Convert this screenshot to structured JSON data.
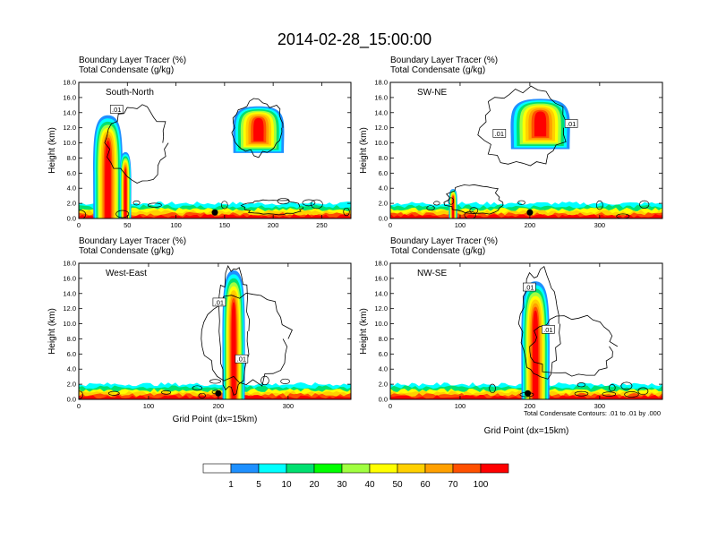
{
  "figure_title": "2014-02-28_15:00:00",
  "contour_note": "Total Condensate Contours: .01 to .01 by .000",
  "colorbar": {
    "levels": [
      "1",
      "5",
      "10",
      "20",
      "30",
      "40",
      "50",
      "60",
      "70",
      "100"
    ],
    "colors": [
      "#ffffff",
      "#1e90ff",
      "#00ffff",
      "#00e070",
      "#00ff00",
      "#a0ff40",
      "#ffff00",
      "#ffd000",
      "#ffa000",
      "#ff5000",
      "#ff0000"
    ]
  },
  "contour_color": "#000000",
  "chart_data": [
    {
      "type": "heatmap",
      "panel": "South-North",
      "label1": "Boundary Layer Tracer   (%)",
      "label2": "Total Condensate   (g/kg)",
      "ylabel": "Height (km)",
      "xlabel": "",
      "xlim": [
        0,
        280
      ],
      "ylim": [
        0,
        18
      ],
      "xticks": [
        "0",
        "50",
        "100",
        "150",
        "200",
        "250"
      ],
      "xtick_values": [
        0,
        50,
        100,
        150,
        200,
        250
      ],
      "yticks": [
        "0.0",
        "2.0",
        "4.0",
        "6.0",
        "8.0",
        "10.0",
        "12.0",
        "14.0",
        "16.0",
        "18.0"
      ],
      "contour_label": ".01",
      "contour_label_at": [
        38,
        14.4
      ],
      "marker_x": 140,
      "plumes": [
        {
          "x": 30,
          "z0": 0,
          "z1": 14.0,
          "hw": 15,
          "w": 2
        },
        {
          "x": 48,
          "z0": 0,
          "z1": 9.0,
          "hw": 6,
          "w": 1
        },
        {
          "x": 185,
          "z0": 8.5,
          "z1": 15.0,
          "hw": 26,
          "w": 1
        }
      ],
      "contours": [
        {
          "x": 60,
          "z": 10,
          "rx": 30,
          "rz": 5
        },
        {
          "x": 185,
          "z": 12,
          "rx": 26,
          "rz": 3.5
        },
        {
          "x": 200,
          "z": 1.5,
          "rx": 30,
          "rz": 1
        }
      ]
    },
    {
      "type": "heatmap",
      "panel": "SW-NE",
      "label1": "Boundary Layer Tracer   (%)",
      "label2": "Total Condensate   (g/kg)",
      "ylabel": "Height (km)",
      "xlabel": "",
      "xlim": [
        0,
        390
      ],
      "ylim": [
        0,
        18
      ],
      "xticks": [
        "0",
        "100",
        "200",
        "300"
      ],
      "xtick_values": [
        0,
        100,
        200,
        300
      ],
      "yticks": [
        "0.0",
        "2.0",
        "4.0",
        "6.0",
        "8.0",
        "10.0",
        "12.0",
        "14.0",
        "16.0",
        "18.0"
      ],
      "contour_label": ".01",
      "contour_label_at": [
        155,
        11.2
      ],
      "contour_label2": ".01",
      "contour_label2_at": [
        258,
        12.5
      ],
      "marker_x": 200,
      "plumes": [
        {
          "x": 215,
          "z0": 9.0,
          "z1": 16.0,
          "hw": 42,
          "w": 1
        },
        {
          "x": 90,
          "z0": 0,
          "z1": 4.0,
          "hw": 6,
          "w": 1
        }
      ],
      "contours": [
        {
          "x": 190,
          "z": 12,
          "rx": 60,
          "rz": 5
        },
        {
          "x": 120,
          "z": 2.5,
          "rx": 40,
          "rz": 2
        }
      ]
    },
    {
      "type": "heatmap",
      "panel": "West-East",
      "label1": "Boundary Layer Tracer   (%)",
      "label2": "Total Condensate   (g/kg)",
      "ylabel": "Height (km)",
      "xlabel": "Grid Point (dx=15km)",
      "xlim": [
        0,
        390
      ],
      "ylim": [
        0,
        18
      ],
      "xticks": [
        "0",
        "100",
        "200",
        "300"
      ],
      "xtick_values": [
        0,
        100,
        200,
        300
      ],
      "yticks": [
        "0.0",
        "2.0",
        "4.0",
        "6.0",
        "8.0",
        "10.0",
        "12.0",
        "14.0",
        "16.0",
        "18.0"
      ],
      "contour_label": ".01",
      "contour_label_at": [
        200,
        12.8
      ],
      "contour_label2": ".01",
      "contour_label2_at": [
        232,
        5.3
      ],
      "marker_x": 200,
      "plumes": [
        {
          "x": 222,
          "z0": 0,
          "z1": 17.5,
          "hw": 16,
          "w": 1
        }
      ],
      "contours": [
        {
          "x": 222,
          "z": 9,
          "rx": 22,
          "rz": 8.5
        },
        {
          "x": 240,
          "z": 8,
          "rx": 60,
          "rz": 6
        }
      ]
    },
    {
      "type": "heatmap",
      "panel": "NW-SE",
      "label1": "Boundary Layer Tracer   (%)",
      "label2": "Total Condensate   (g/kg)",
      "ylabel": "Height (km)",
      "xlabel": "Grid Point (dx=15km)",
      "xlim": [
        0,
        390
      ],
      "ylim": [
        0,
        18
      ],
      "xticks": [
        "0",
        "100",
        "200",
        "300"
      ],
      "xtick_values": [
        0,
        100,
        200,
        300
      ],
      "yticks": [
        "0.0",
        "2.0",
        "4.0",
        "6.0",
        "8.0",
        "10.0",
        "12.0",
        "14.0",
        "16.0",
        "18.0"
      ],
      "contour_label": ".01",
      "contour_label_at": [
        198,
        14.8
      ],
      "contour_label2": ".01",
      "contour_label2_at": [
        225,
        9.2
      ],
      "marker_x": 197,
      "plumes": [
        {
          "x": 208,
          "z0": 0,
          "z1": 16.0,
          "hw": 20,
          "w": 1
        }
      ],
      "contours": [
        {
          "x": 215,
          "z": 10,
          "rx": 28,
          "rz": 7
        },
        {
          "x": 260,
          "z": 7,
          "rx": 60,
          "rz": 4
        }
      ]
    }
  ]
}
